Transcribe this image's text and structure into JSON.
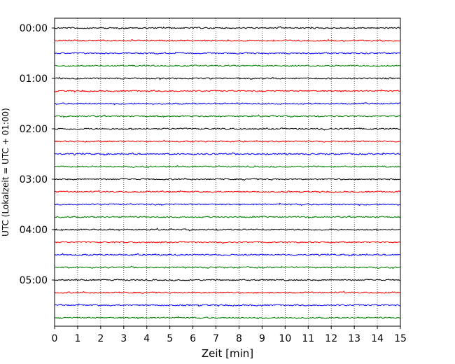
{
  "chart_data": {
    "type": "line",
    "title": "",
    "xlabel": "Zeit  [min]",
    "ylabel": "UTC (Lokalzeit = UTC + 01:00)",
    "xlim": [
      0,
      15
    ],
    "x_ticks": [
      0,
      1,
      2,
      3,
      4,
      5,
      6,
      7,
      8,
      9,
      10,
      11,
      12,
      13,
      14,
      15
    ],
    "x_tick_labels": [
      "0",
      "1",
      "2",
      "3",
      "4",
      "5",
      "6",
      "7",
      "8",
      "9",
      "10",
      "11",
      "12",
      "13",
      "14",
      "15"
    ],
    "y_tick_labels": [
      "00:00",
      "01:00",
      "02:00",
      "03:00",
      "04:00",
      "05:00"
    ],
    "trace_interval_minutes": 15,
    "trace_start_times": [
      "00:00",
      "00:15",
      "00:30",
      "00:45",
      "01:00",
      "01:15",
      "01:30",
      "01:45",
      "02:00",
      "02:15",
      "02:30",
      "02:45",
      "03:00",
      "03:15",
      "03:30",
      "03:45",
      "04:00",
      "04:15",
      "04:30",
      "04:45",
      "05:00",
      "05:15",
      "05:30",
      "05:45"
    ],
    "trace_color_cycle": [
      "#000000",
      "#ff0000",
      "#0000ff",
      "#008000"
    ],
    "grid": "vertical dotted lines at every minute",
    "legend": "none"
  }
}
